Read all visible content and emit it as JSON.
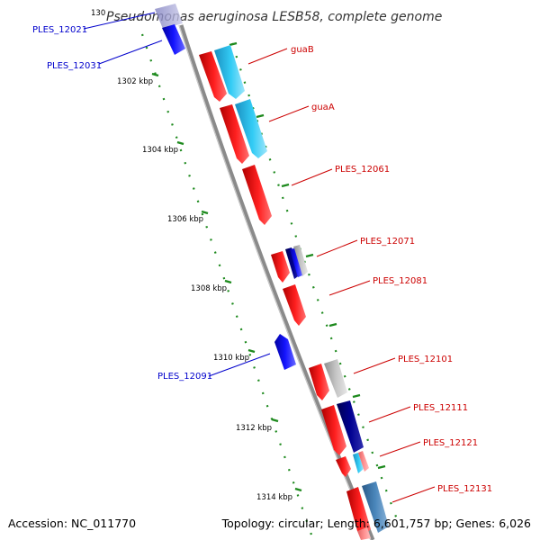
{
  "title": "Pseudomonas aeruginosa LESB58, complete genome",
  "footer": {
    "accession": "Accession: NC_011770",
    "summary": "Topology: circular; Length: 6,601,757 bp; Genes: 6,026"
  },
  "colors": {
    "backbone": "#808080",
    "tick": "#1e8a1e",
    "forward_label": "#cc0000",
    "reverse_label": "#0000cc",
    "red_gene": "#ee0000",
    "cyan_gene": "#33bbee",
    "blue_gene": "#1111ee",
    "navy_gene": "#000080",
    "gray_gene": "#b0b0b0",
    "steel_gene": "#4682b4",
    "pink_gene": "#ff8888"
  },
  "scale": {
    "unit": "kbp",
    "ticks": [
      {
        "pos": 1302,
        "label": "1302 kbp"
      },
      {
        "pos": 1304,
        "label": "1304 kbp"
      },
      {
        "pos": 1306,
        "label": "1306 kbp"
      },
      {
        "pos": 1308,
        "label": "1308 kbp"
      },
      {
        "pos": 1310,
        "label": "1310 kbp"
      },
      {
        "pos": 1312,
        "label": "1312 kbp"
      },
      {
        "pos": 1314,
        "label": "1314 kbp"
      }
    ]
  },
  "labels": [
    {
      "text": "PLES_12021",
      "strand": "reverse"
    },
    {
      "text": "PLES_12031",
      "strand": "reverse"
    },
    {
      "text": "guaB",
      "strand": "forward"
    },
    {
      "text": "guaA",
      "strand": "forward"
    },
    {
      "text": "PLES_12061",
      "strand": "forward"
    },
    {
      "text": "PLES_12071",
      "strand": "forward"
    },
    {
      "text": "PLES_12081",
      "strand": "forward"
    },
    {
      "text": "PLES_12091",
      "strand": "reverse"
    },
    {
      "text": "PLES_12101",
      "strand": "forward"
    },
    {
      "text": "PLES_12111",
      "strand": "forward"
    },
    {
      "text": "PLES_12121",
      "strand": "forward"
    },
    {
      "text": "PLES_12131",
      "strand": "forward"
    }
  ]
}
